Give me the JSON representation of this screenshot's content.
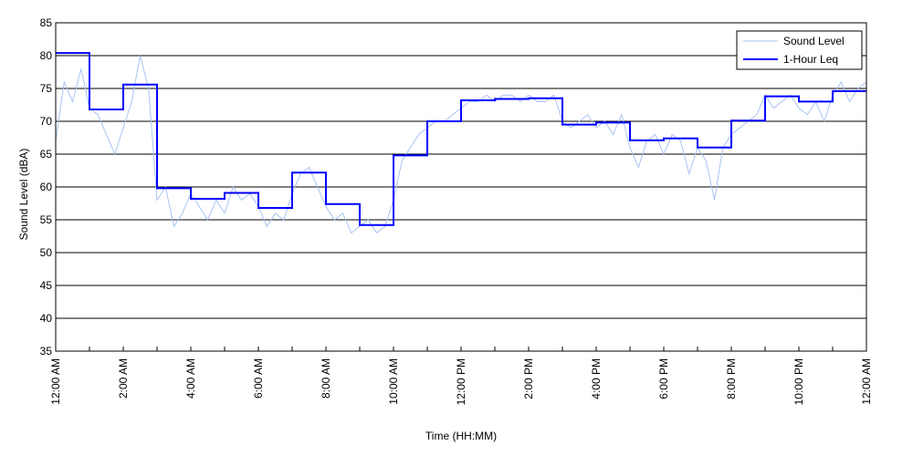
{
  "chart_data": {
    "type": "line",
    "title": "",
    "xlabel": "Time (HH:MM)",
    "ylabel": "Sound Level (dBA)",
    "ylim": [
      35,
      85
    ],
    "xlim": [
      0,
      24
    ],
    "yticks": [
      35,
      40,
      45,
      50,
      55,
      60,
      65,
      70,
      75,
      80,
      85
    ],
    "xticks": [
      {
        "hour": 0,
        "label": "12:00 AM"
      },
      {
        "hour": 2,
        "label": "2:00 AM"
      },
      {
        "hour": 4,
        "label": "4:00 AM"
      },
      {
        "hour": 6,
        "label": "6:00 AM"
      },
      {
        "hour": 8,
        "label": "8:00 AM"
      },
      {
        "hour": 10,
        "label": "10:00 AM"
      },
      {
        "hour": 12,
        "label": "12:00 PM"
      },
      {
        "hour": 14,
        "label": "2:00 PM"
      },
      {
        "hour": 16,
        "label": "4:00 PM"
      },
      {
        "hour": 18,
        "label": "6:00 PM"
      },
      {
        "hour": 20,
        "label": "8:00 PM"
      },
      {
        "hour": 22,
        "label": "10:00 PM"
      },
      {
        "hour": 24,
        "label": "12:00 AM"
      }
    ],
    "grid": "horizontal",
    "legend_position": "top-right",
    "series": [
      {
        "name": "Sound Level",
        "color": "#a8c4f2",
        "style": "thin-line",
        "x_hours": [
          0.0,
          0.25,
          0.5,
          0.75,
          1.0,
          1.25,
          1.5,
          1.75,
          2.0,
          2.25,
          2.5,
          2.75,
          3.0,
          3.25,
          3.5,
          3.75,
          4.0,
          4.25,
          4.5,
          4.75,
          5.0,
          5.25,
          5.5,
          5.75,
          6.0,
          6.25,
          6.5,
          6.75,
          7.0,
          7.25,
          7.5,
          7.75,
          8.0,
          8.25,
          8.5,
          8.75,
          9.0,
          9.25,
          9.5,
          9.75,
          10.0,
          10.25,
          10.5,
          10.75,
          11.0,
          11.25,
          11.5,
          11.75,
          12.0,
          12.25,
          12.5,
          12.75,
          13.0,
          13.25,
          13.5,
          13.75,
          14.0,
          14.25,
          14.5,
          14.75,
          15.0,
          15.25,
          15.5,
          15.75,
          16.0,
          16.25,
          16.5,
          16.75,
          17.0,
          17.25,
          17.5,
          17.75,
          18.0,
          18.25,
          18.5,
          18.75,
          19.0,
          19.25,
          19.5,
          19.75,
          20.0,
          20.25,
          20.5,
          20.75,
          21.0,
          21.25,
          21.5,
          21.75,
          22.0,
          22.25,
          22.5,
          22.75,
          23.0,
          23.25,
          23.5,
          23.75,
          24.0
        ],
        "values": [
          67,
          76,
          73,
          78,
          72,
          71,
          68,
          65,
          69,
          73,
          80,
          75,
          58,
          60,
          54,
          56,
          59,
          57,
          55,
          58,
          56,
          60,
          58,
          59,
          57,
          54,
          56,
          55,
          59,
          62,
          63,
          60,
          57,
          55,
          56,
          53,
          54,
          55,
          53,
          54,
          58,
          64,
          66,
          68,
          69,
          70,
          70,
          71,
          72,
          73,
          73,
          74,
          73,
          74,
          74,
          73,
          74,
          73,
          73,
          74,
          70,
          69,
          70,
          71,
          69,
          70,
          68,
          71,
          66,
          63,
          67,
          68,
          65,
          68,
          67,
          62,
          66,
          64,
          58,
          66,
          68,
          69,
          70,
          71,
          74,
          72,
          73,
          74,
          72,
          71,
          73,
          70,
          74,
          76,
          73,
          75,
          76
        ]
      },
      {
        "name": "1-Hour Leq",
        "color": "#0000ff",
        "style": "step",
        "hourly_values": [
          80.4,
          71.8,
          75.6,
          59.8,
          58.2,
          59.1,
          56.8,
          62.2,
          57.4,
          54.2,
          64.8,
          70.0,
          73.2,
          73.4,
          73.5,
          69.5,
          69.8,
          67.1,
          67.4,
          66.0,
          70.1,
          73.8,
          73.0,
          74.6
        ]
      }
    ]
  }
}
